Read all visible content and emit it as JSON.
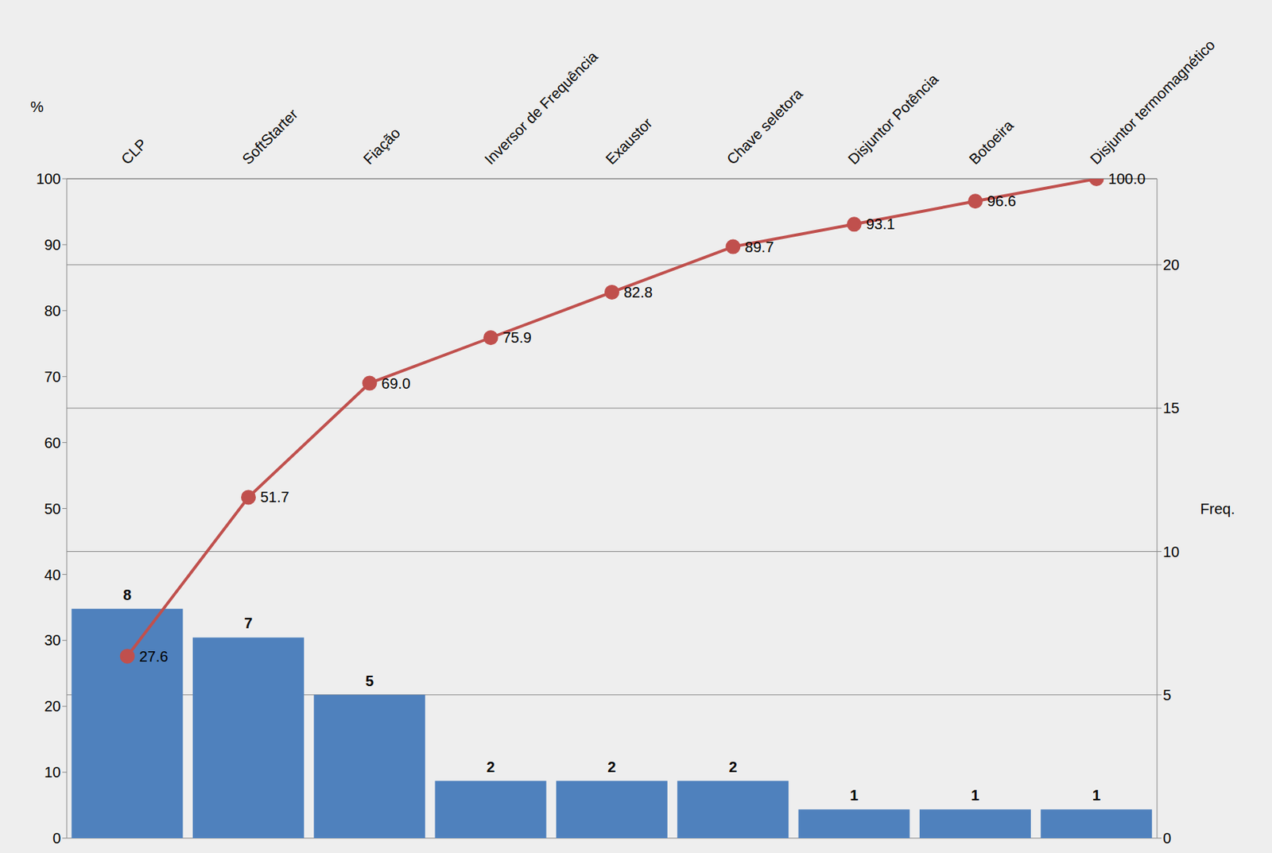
{
  "chart_data": {
    "type": "pareto",
    "y_label": "%",
    "y2_label": "Freq.",
    "categories": [
      "CLP",
      "SoftStarter",
      "Fiação",
      "Inversor de Frequência",
      "Exaustor",
      "Chave seletora",
      "Disjuntor Potência",
      "Botoeira",
      "Disjuntor termomagnético"
    ],
    "series": [
      {
        "type": "bar",
        "axis": "y2",
        "color": "#4f81bd",
        "data_labels": true,
        "values": [
          8,
          7,
          5,
          2,
          2,
          2,
          1,
          1,
          1
        ]
      },
      {
        "type": "line",
        "color": "#c0504d",
        "marker": "circle",
        "data_labels": true,
        "values": [
          27.6,
          51.7,
          69.0,
          75.9,
          82.8,
          89.7,
          93.1,
          96.6,
          100.0
        ],
        "value_labels": [
          "27.6",
          "51.7",
          "69.0",
          "75.9",
          "82.8",
          "89.7",
          "93.1",
          "96.6",
          "100.0"
        ]
      }
    ],
    "ylim": [
      0,
      100
    ],
    "yticks": [
      0,
      10,
      20,
      30,
      40,
      50,
      60,
      70,
      80,
      90,
      100
    ],
    "y2lim": [
      0,
      23
    ],
    "y2ticks": [
      0,
      5,
      10,
      15,
      20
    ],
    "grid": true
  }
}
